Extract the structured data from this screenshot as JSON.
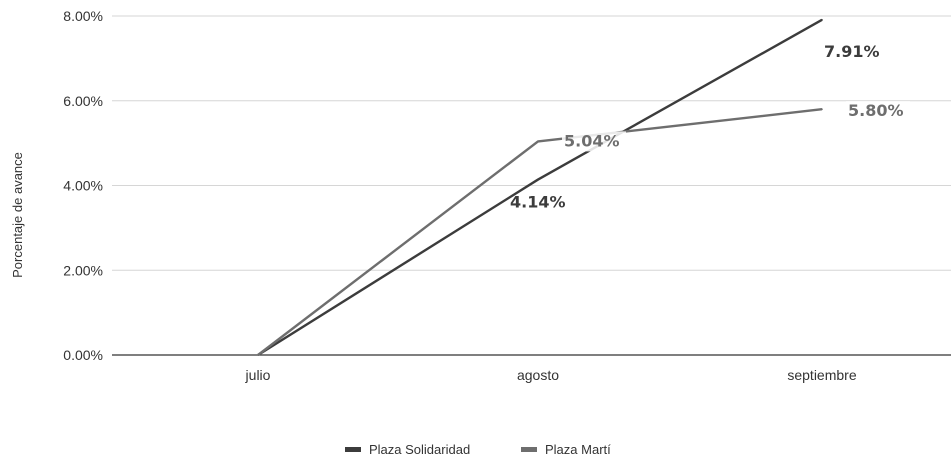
{
  "chart_data": {
    "type": "line",
    "categories": [
      "julio",
      "agosto",
      "septiembre"
    ],
    "series": [
      {
        "name": "Plaza Solidaridad",
        "values": [
          0.0,
          4.14,
          7.91
        ],
        "labels": [
          "",
          "4.14%",
          "7.91%"
        ],
        "color": "#3c3c3c"
      },
      {
        "name": "Plaza Martí",
        "values": [
          0.0,
          5.04,
          5.8
        ],
        "labels": [
          "",
          "5.04%",
          "5.80%"
        ],
        "color": "#6e6e6e"
      }
    ],
    "ylabel": "Porcentaje de avance",
    "xlabel": "",
    "ylim": [
      0,
      8
    ],
    "yticks": [
      "0.00%",
      "2.00%",
      "4.00%",
      "6.00%",
      "8.00%"
    ],
    "grid": true,
    "legend_position": "bottom"
  }
}
